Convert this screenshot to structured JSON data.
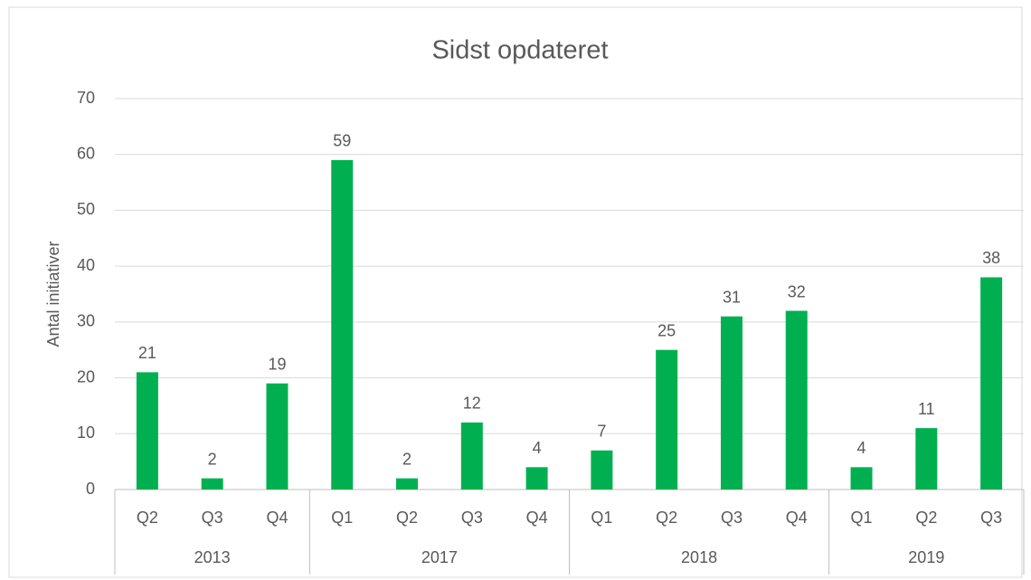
{
  "chart_data": {
    "type": "bar",
    "title": "Sidst opdateret",
    "y_label": "Antal initiativer",
    "groups": [
      {
        "label": "2013",
        "categories": [
          "Q2",
          "Q3",
          "Q4"
        ],
        "values": [
          21,
          2,
          19
        ]
      },
      {
        "label": "2017",
        "categories": [
          "Q1",
          "Q2",
          "Q3",
          "Q4"
        ],
        "values": [
          59,
          2,
          12,
          4
        ]
      },
      {
        "label": "2018",
        "categories": [
          "Q1",
          "Q2",
          "Q3",
          "Q4"
        ],
        "values": [
          7,
          25,
          31,
          32
        ]
      },
      {
        "label": "2019",
        "categories": [
          "Q1",
          "Q2",
          "Q3"
        ],
        "values": [
          4,
          11,
          38
        ]
      }
    ],
    "color": "#00b050",
    "ylim": [
      0,
      70
    ],
    "yticks": [
      0,
      10,
      20,
      30,
      40,
      50,
      60,
      70
    ],
    "grid": true
  }
}
